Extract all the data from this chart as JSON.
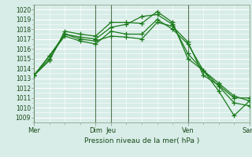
{
  "title": "",
  "xlabel": "Pression niveau de la mer( hPa )",
  "bg_color": "#d8ede8",
  "grid_color": "#ffffff",
  "line_color": "#1a7a1a",
  "ylim_min": 1008.5,
  "ylim_max": 1020.5,
  "yticks": [
    1009,
    1010,
    1011,
    1012,
    1013,
    1014,
    1015,
    1016,
    1017,
    1018,
    1019,
    1020
  ],
  "xlim_min": 0,
  "xlim_max": 14,
  "vlines_x": [
    0,
    4,
    5,
    10,
    14
  ],
  "vline_color": "#557755",
  "xtick_positions": [
    0,
    4,
    5,
    10,
    14
  ],
  "xtick_labels": [
    "Mer",
    "Dim",
    "Jeu",
    "Ven",
    "Sam"
  ],
  "series": [
    {
      "x": [
        0,
        1,
        2,
        3,
        4,
        5,
        6,
        7,
        8,
        9,
        10,
        11,
        12,
        13,
        14
      ],
      "y": [
        1013.3,
        1014.8,
        1017.8,
        1017.5,
        1017.3,
        1018.7,
        1018.7,
        1018.6,
        1019.8,
        1018.7,
        1015.0,
        1013.8,
        1012.5,
        1011.2,
        1010.7
      ]
    },
    {
      "x": [
        0,
        1,
        2,
        3,
        4,
        5,
        6,
        7,
        8,
        9,
        10,
        11,
        12,
        13,
        14
      ],
      "y": [
        1013.3,
        1015.3,
        1017.5,
        1017.2,
        1017.0,
        1018.2,
        1018.5,
        1019.3,
        1019.5,
        1018.5,
        1015.5,
        1013.8,
        1011.7,
        1009.2,
        1010.7
      ]
    },
    {
      "x": [
        0,
        1,
        2,
        3,
        4,
        5,
        6,
        7,
        8,
        9,
        10,
        11,
        12,
        13,
        14
      ],
      "y": [
        1013.3,
        1015.3,
        1017.3,
        1016.8,
        1016.5,
        1017.8,
        1017.5,
        1017.5,
        1019.0,
        1018.0,
        1016.5,
        1013.8,
        1012.2,
        1010.5,
        1010.2
      ]
    },
    {
      "x": [
        0,
        1,
        2,
        3,
        4,
        5,
        6,
        7,
        8,
        9,
        10,
        11,
        12,
        13,
        14
      ],
      "y": [
        1013.3,
        1015.0,
        1017.5,
        1017.0,
        1016.8,
        1017.3,
        1017.2,
        1017.0,
        1018.7,
        1018.3,
        1016.7,
        1013.3,
        1012.3,
        1011.0,
        1011.0
      ]
    }
  ]
}
